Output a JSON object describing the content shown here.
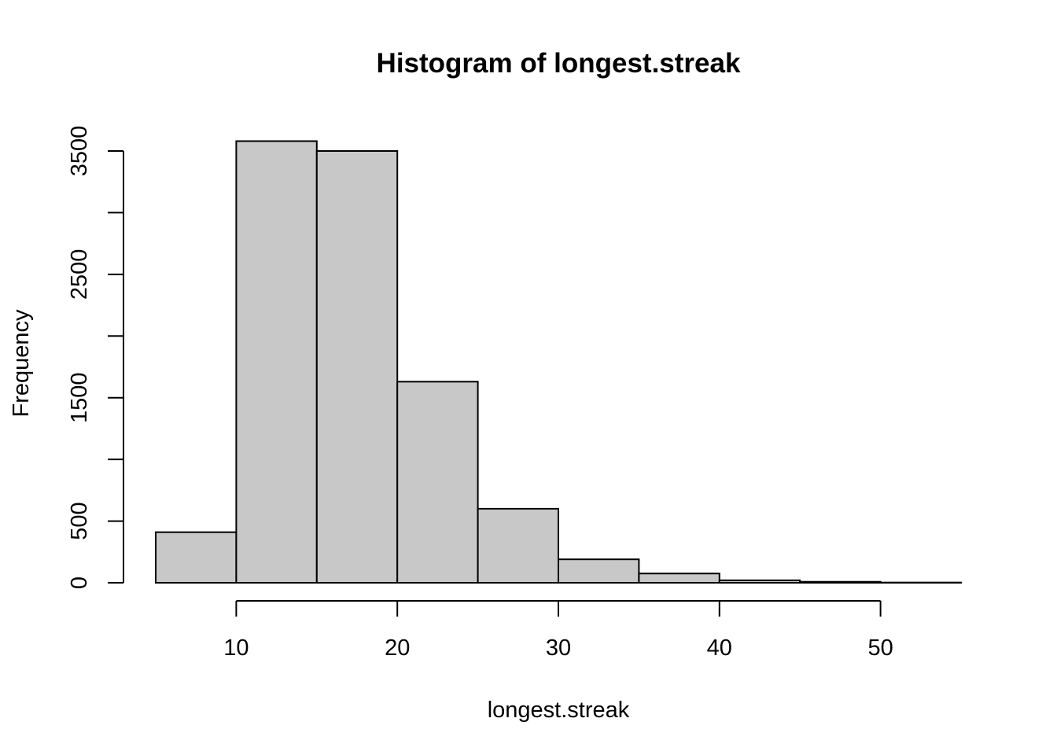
{
  "chart_data": {
    "type": "bar",
    "title": "Histogram of longest.streak",
    "xlabel": "longest.streak",
    "ylabel": "Frequency",
    "bins": [
      {
        "start": 5,
        "end": 10,
        "count": 410
      },
      {
        "start": 10,
        "end": 15,
        "count": 3580
      },
      {
        "start": 15,
        "end": 20,
        "count": 3500
      },
      {
        "start": 20,
        "end": 25,
        "count": 1630
      },
      {
        "start": 25,
        "end": 30,
        "count": 600
      },
      {
        "start": 30,
        "end": 35,
        "count": 190
      },
      {
        "start": 35,
        "end": 40,
        "count": 75
      },
      {
        "start": 40,
        "end": 45,
        "count": 20
      },
      {
        "start": 45,
        "end": 50,
        "count": 8
      },
      {
        "start": 50,
        "end": 55,
        "count": 2
      }
    ],
    "xlim": [
      5,
      55
    ],
    "ylim": [
      0,
      3600
    ],
    "x_ticks": [
      10,
      20,
      30,
      40,
      50
    ],
    "y_ticks": [
      0,
      500,
      1000,
      1500,
      2000,
      2500,
      3000,
      3500
    ],
    "y_tick_labels": [
      "0",
      "500",
      "",
      "1500",
      "",
      "2500",
      "",
      "3500"
    ],
    "bar_color": "#c8c8c8",
    "grid": false
  }
}
